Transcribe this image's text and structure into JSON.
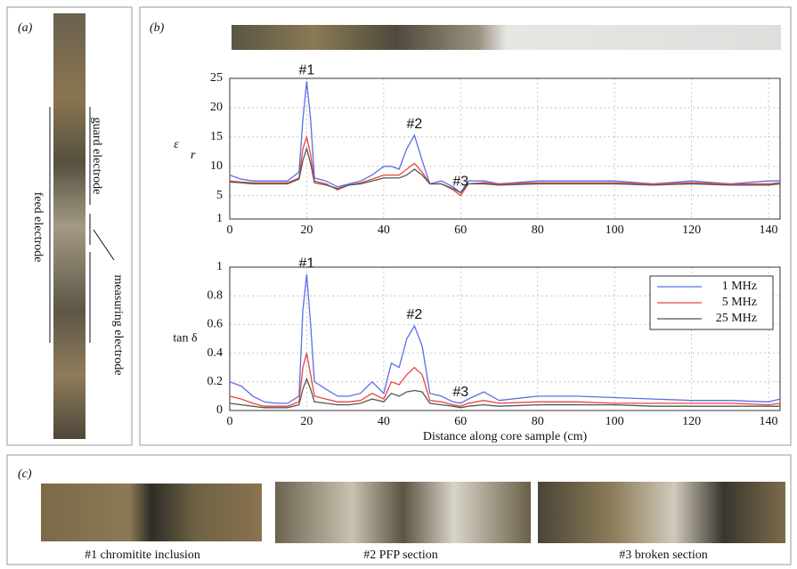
{
  "panels": {
    "a": {
      "label": "(a)",
      "guard": "guard electrode",
      "feed": "feed electrode",
      "measuring": "measuring electrode"
    },
    "b": {
      "label": "(b)"
    },
    "c": {
      "label": "(c)",
      "captions": [
        "#1 chromitite inclusion",
        "#2 PFP section",
        "#3 broken section"
      ]
    }
  },
  "chart_data": [
    {
      "type": "line",
      "ylabel": "ε",
      "ylabel_sub": "r",
      "x": [
        0,
        3,
        6,
        9,
        12,
        15,
        18,
        19,
        20,
        21,
        22,
        25,
        28,
        31,
        34,
        37,
        40,
        42,
        44,
        46,
        48,
        50,
        52,
        55,
        58,
        60,
        62,
        66,
        70,
        80,
        90,
        100,
        110,
        120,
        130,
        140,
        143
      ],
      "xlim": [
        0,
        143
      ],
      "xticks": [
        0,
        20,
        40,
        60,
        80,
        100,
        120,
        140
      ],
      "ylim": [
        1,
        25
      ],
      "yticks": [
        1,
        5,
        10,
        15,
        20,
        25
      ],
      "grid": true,
      "annotations": [
        {
          "text": "#1",
          "x": 20
        },
        {
          "text": "#2",
          "x": 48
        },
        {
          "text": "#3",
          "x": 60
        }
      ],
      "series": [
        {
          "name": "1 MHz",
          "color": "#5b6ee8",
          "values": [
            8.5,
            7.8,
            7.5,
            7.5,
            7.5,
            7.5,
            9,
            18,
            24.5,
            18,
            8,
            7.5,
            6.5,
            7,
            7.5,
            8.5,
            10,
            10,
            9.5,
            13,
            15.3,
            11,
            7,
            7.5,
            6.5,
            5.5,
            7.5,
            7.5,
            7,
            7.5,
            7.5,
            7.5,
            7,
            7.5,
            7,
            7.5,
            7.5
          ]
        },
        {
          "name": "5 MHz",
          "color": "#e8453c",
          "values": [
            7.5,
            7.3,
            7.2,
            7.2,
            7.2,
            7.2,
            8,
            13,
            15,
            12,
            7.5,
            7,
            6,
            6.8,
            7.2,
            7.8,
            8.5,
            8.5,
            8.5,
            9.5,
            10.5,
            9,
            7,
            7,
            6,
            5,
            7,
            7.2,
            7,
            7.2,
            7.2,
            7.2,
            7,
            7.2,
            7,
            7,
            7.2
          ]
        },
        {
          "name": "25 MHz",
          "color": "#555555",
          "values": [
            7.3,
            7.2,
            7,
            7,
            7,
            7,
            7.8,
            11,
            13,
            10.5,
            7.2,
            6.8,
            6.2,
            6.8,
            7,
            7.5,
            8,
            8,
            8,
            8.5,
            9.5,
            8.5,
            7,
            7,
            6.2,
            5.5,
            7,
            7,
            6.8,
            7,
            7,
            7,
            6.8,
            7,
            6.8,
            6.8,
            7
          ]
        }
      ]
    },
    {
      "type": "line",
      "ylabel": "tan δ",
      "xlabel": "Distance along core sample (cm)",
      "x": [
        0,
        3,
        6,
        9,
        12,
        15,
        18,
        19,
        20,
        21,
        22,
        25,
        28,
        31,
        34,
        37,
        40,
        42,
        44,
        46,
        48,
        50,
        52,
        55,
        58,
        60,
        62,
        66,
        70,
        80,
        90,
        100,
        110,
        120,
        130,
        140,
        143
      ],
      "xlim": [
        0,
        143
      ],
      "xticks": [
        0,
        20,
        40,
        60,
        80,
        100,
        120,
        140
      ],
      "ylim": [
        0,
        1
      ],
      "yticks": [
        0,
        0.2,
        0.4,
        0.6,
        0.8,
        1
      ],
      "grid": true,
      "legend": "upper right",
      "annotations": [
        {
          "text": "#1",
          "x": 20
        },
        {
          "text": "#2",
          "x": 48
        },
        {
          "text": "#3",
          "x": 60
        }
      ],
      "series": [
        {
          "name": "1 MHz",
          "color": "#5b6ee8",
          "values": [
            0.2,
            0.17,
            0.1,
            0.06,
            0.05,
            0.05,
            0.1,
            0.7,
            0.95,
            0.6,
            0.2,
            0.15,
            0.1,
            0.1,
            0.12,
            0.2,
            0.12,
            0.33,
            0.3,
            0.5,
            0.59,
            0.45,
            0.12,
            0.1,
            0.06,
            0.05,
            0.08,
            0.13,
            0.07,
            0.1,
            0.1,
            0.09,
            0.08,
            0.07,
            0.07,
            0.06,
            0.08
          ]
        },
        {
          "name": "5 MHz",
          "color": "#e8453c",
          "values": [
            0.1,
            0.08,
            0.05,
            0.03,
            0.03,
            0.03,
            0.06,
            0.3,
            0.4,
            0.25,
            0.1,
            0.08,
            0.06,
            0.06,
            0.07,
            0.12,
            0.08,
            0.2,
            0.18,
            0.25,
            0.3,
            0.25,
            0.07,
            0.06,
            0.04,
            0.03,
            0.05,
            0.07,
            0.05,
            0.06,
            0.06,
            0.05,
            0.05,
            0.05,
            0.05,
            0.04,
            0.05
          ]
        },
        {
          "name": "25 MHz",
          "color": "#555555",
          "values": [
            0.05,
            0.04,
            0.03,
            0.02,
            0.02,
            0.02,
            0.04,
            0.15,
            0.22,
            0.15,
            0.06,
            0.05,
            0.04,
            0.04,
            0.05,
            0.08,
            0.06,
            0.12,
            0.1,
            0.13,
            0.14,
            0.13,
            0.05,
            0.04,
            0.03,
            0.02,
            0.03,
            0.04,
            0.03,
            0.04,
            0.04,
            0.04,
            0.03,
            0.03,
            0.03,
            0.03,
            0.03
          ]
        }
      ]
    }
  ]
}
